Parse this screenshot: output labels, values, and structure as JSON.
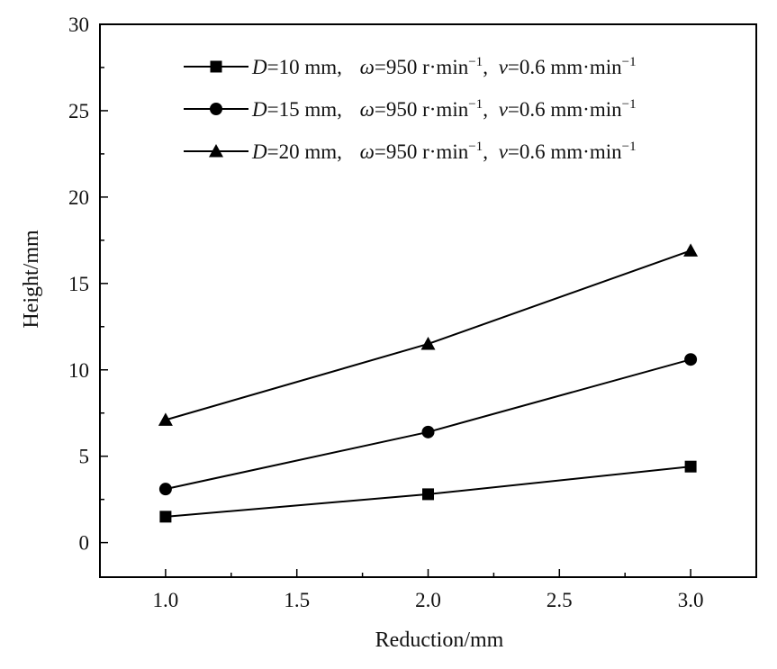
{
  "chart_data": {
    "type": "line",
    "x": [
      1.0,
      2.0,
      3.0
    ],
    "xlim": [
      0.75,
      3.25
    ],
    "ylim": [
      -2,
      30
    ],
    "xticks": [
      "1.0",
      "1.5",
      "2.0",
      "2.5",
      "3.0"
    ],
    "xtick_values": [
      1.0,
      1.5,
      2.0,
      2.5,
      3.0
    ],
    "yticks": [
      "0",
      "5",
      "10",
      "15",
      "20",
      "25",
      "30"
    ],
    "ytick_values": [
      0,
      5,
      10,
      15,
      20,
      25,
      30
    ],
    "xlabel": "Reduction/mm",
    "ylabel": "Height/mm",
    "legend_position": "top-right",
    "grid": false,
    "series": [
      {
        "marker": "square",
        "values": [
          1.5,
          2.8,
          4.4
        ],
        "legend": {
          "d_sym": "D",
          "d_val": "=10 mm,",
          "w_sym": "ω",
          "w_val": "=950 r·min",
          "w_exp": "−1",
          "sep": ",",
          "v_sym": "v",
          "v_val": "=0.6 mm·min",
          "v_exp": "−1"
        }
      },
      {
        "marker": "circle",
        "values": [
          3.1,
          6.4,
          10.6
        ],
        "legend": {
          "d_sym": "D",
          "d_val": "=15 mm,",
          "w_sym": "ω",
          "w_val": "=950 r·min",
          "w_exp": "−1",
          "sep": ",",
          "v_sym": "v",
          "v_val": "=0.6 mm·min",
          "v_exp": "−1"
        }
      },
      {
        "marker": "triangle",
        "values": [
          7.1,
          11.5,
          16.9
        ],
        "legend": {
          "d_sym": "D",
          "d_val": "=20 mm,",
          "w_sym": "ω",
          "w_val": "=950 r·min",
          "w_exp": "−1",
          "sep": ",",
          "v_sym": "v",
          "v_val": "=0.6 mm·min",
          "v_exp": "−1"
        }
      }
    ]
  }
}
